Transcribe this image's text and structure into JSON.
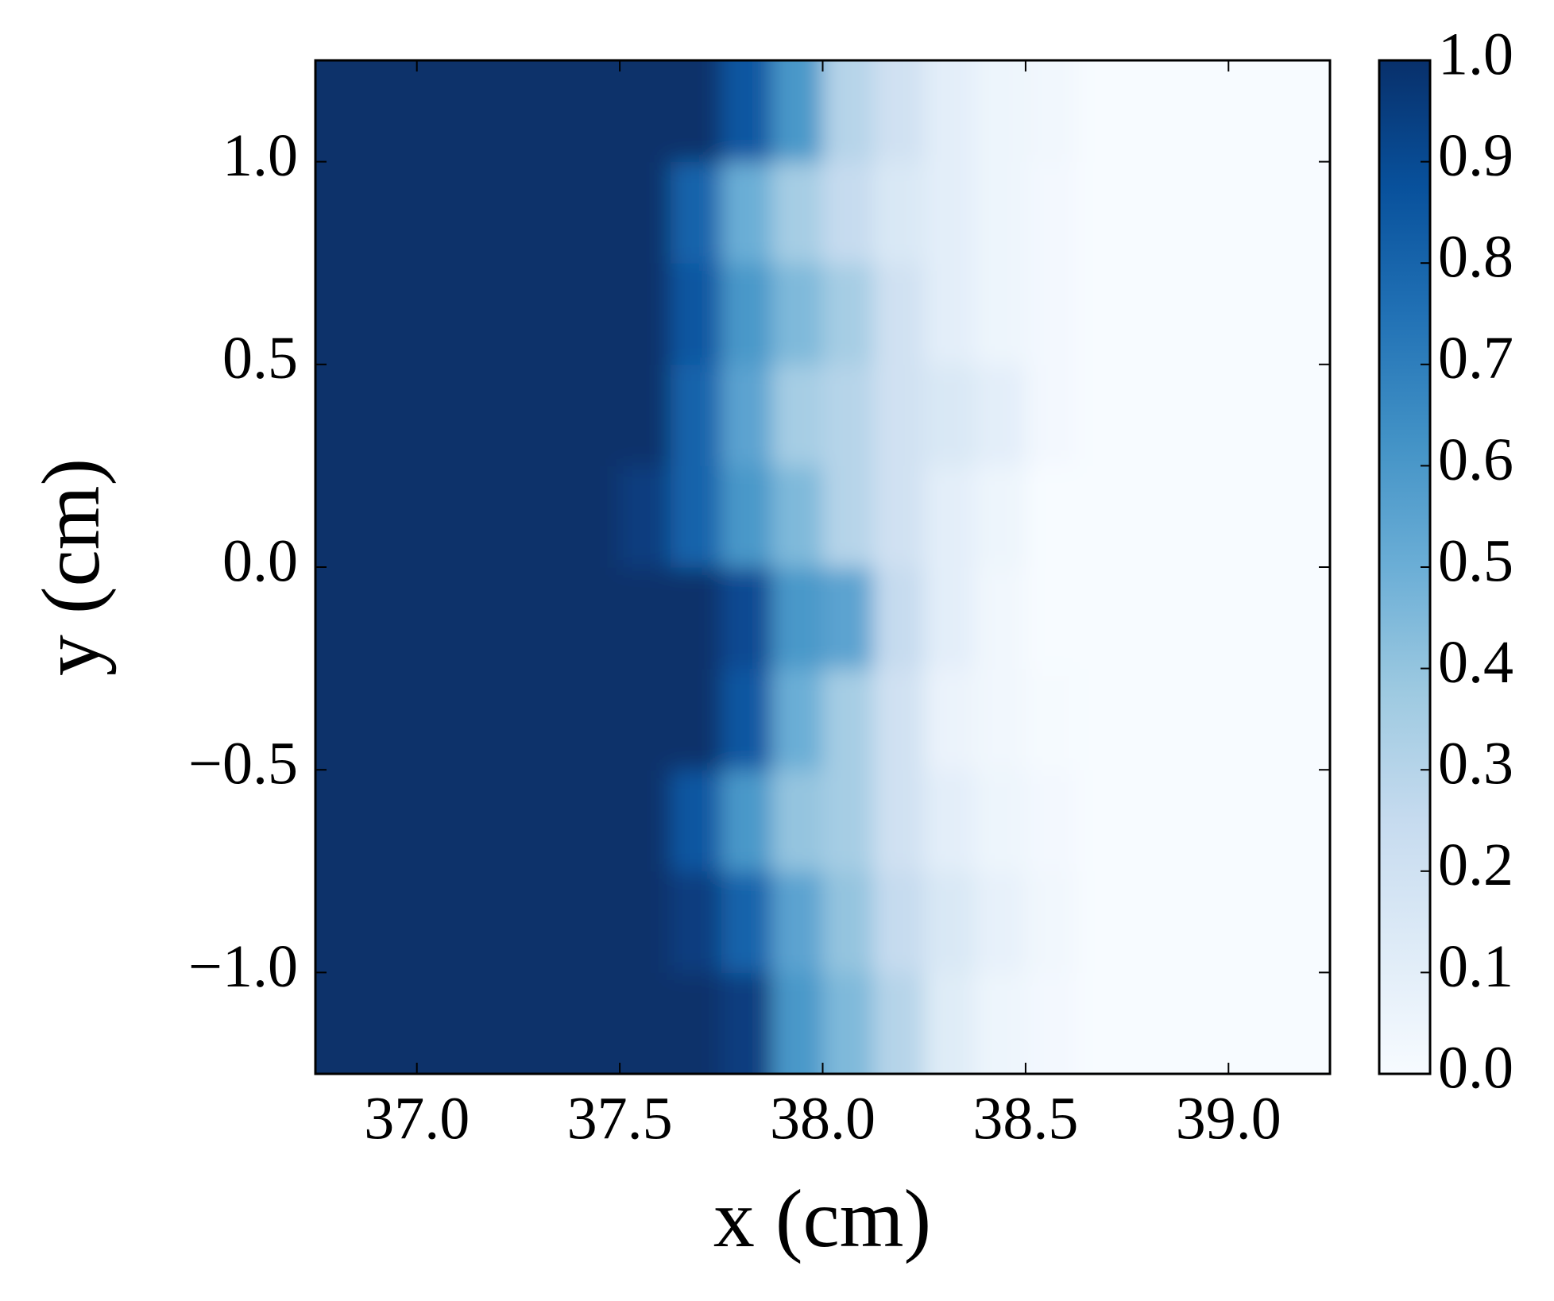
{
  "chart_data": {
    "type": "heatmap",
    "xlabel": "x (cm)",
    "ylabel": "y (cm)",
    "xlim": [
      36.75,
      39.25
    ],
    "ylim": [
      -1.25,
      1.25
    ],
    "xticks": [
      {
        "value": 37,
        "label": "37.0"
      },
      {
        "value": 37.5,
        "label": "37.5"
      },
      {
        "value": 38,
        "label": "38.0"
      },
      {
        "value": 38.5,
        "label": "38.5"
      },
      {
        "value": 39,
        "label": "39.0"
      }
    ],
    "yticks": [
      {
        "value": -1,
        "label": "−1.0"
      },
      {
        "value": -0.5,
        "label": "−0.5"
      },
      {
        "value": 0,
        "label": "0.0"
      },
      {
        "value": 0.5,
        "label": "0.5"
      },
      {
        "value": 1,
        "label": "1.0"
      }
    ],
    "clim": [
      0,
      1
    ],
    "cticks": [
      {
        "value": 0,
        "label": "0.0"
      },
      {
        "value": 0.1,
        "label": "0.1"
      },
      {
        "value": 0.2,
        "label": "0.2"
      },
      {
        "value": 0.3,
        "label": "0.3"
      },
      {
        "value": 0.4,
        "label": "0.4"
      },
      {
        "value": 0.5,
        "label": "0.5"
      },
      {
        "value": 0.6,
        "label": "0.6"
      },
      {
        "value": 0.7,
        "label": "0.7"
      },
      {
        "value": 0.8,
        "label": "0.8"
      },
      {
        "value": 0.9,
        "label": "0.9"
      },
      {
        "value": 1,
        "label": "1.0"
      }
    ],
    "colormap": [
      "#f7fbff",
      "#deebf7",
      "#c6dbef",
      "#9ecae1",
      "#6baed6",
      "#4292c6",
      "#2171b5",
      "#08519c",
      "#08306b"
    ],
    "x": [
      36.8125,
      36.9375,
      37.0625,
      37.1875,
      37.3125,
      37.4375,
      37.5625,
      37.6875,
      37.8125,
      37.9375,
      38.0625,
      38.1875,
      38.3125,
      38.4375,
      38.5625,
      38.6875,
      38.8125,
      38.9375,
      39.0625,
      39.1875
    ],
    "y": [
      -1.125,
      -0.875,
      -0.625,
      -0.375,
      -0.125,
      0.125,
      0.375,
      0.625,
      0.875,
      1.125
    ],
    "z": [
      [
        1,
        1,
        1,
        1,
        1,
        1,
        1,
        1,
        0.95,
        0.6,
        0.45,
        0.3,
        0.12,
        0.05,
        0.02,
        0,
        0,
        0,
        0,
        0
      ],
      [
        1,
        1,
        1,
        1,
        1,
        1,
        1,
        0.95,
        0.8,
        0.55,
        0.4,
        0.25,
        0.15,
        0.08,
        0.03,
        0,
        0,
        0,
        0,
        0
      ],
      [
        1,
        1,
        1,
        1,
        1,
        1,
        1,
        0.85,
        0.6,
        0.4,
        0.35,
        0.2,
        0.1,
        0.05,
        0.02,
        0,
        0,
        0,
        0,
        0
      ],
      [
        1,
        1,
        1,
        1,
        1,
        1,
        1,
        1,
        0.85,
        0.5,
        0.35,
        0.2,
        0.06,
        0.03,
        0.01,
        0,
        0,
        0,
        0,
        0
      ],
      [
        1,
        1,
        1,
        1,
        1,
        1,
        1,
        1,
        0.9,
        0.6,
        0.55,
        0.25,
        0.1,
        0.03,
        0,
        0,
        0,
        0,
        0,
        0
      ],
      [
        1,
        1,
        1,
        1,
        1,
        1,
        0.95,
        0.8,
        0.6,
        0.45,
        0.3,
        0.2,
        0.1,
        0.05,
        0,
        0,
        0,
        0,
        0,
        0
      ],
      [
        1,
        1,
        1,
        1,
        1,
        1,
        1,
        0.8,
        0.55,
        0.35,
        0.3,
        0.2,
        0.15,
        0.1,
        0.02,
        0,
        0,
        0,
        0,
        0
      ],
      [
        1,
        1,
        1,
        1,
        1,
        1,
        1,
        0.85,
        0.6,
        0.45,
        0.35,
        0.2,
        0.1,
        0.05,
        0.02,
        0,
        0,
        0,
        0,
        0
      ],
      [
        1,
        1,
        1,
        1,
        1,
        1,
        1,
        0.8,
        0.5,
        0.35,
        0.25,
        0.15,
        0.1,
        0.05,
        0.02,
        0,
        0,
        0,
        0,
        0
      ],
      [
        1,
        1,
        1,
        1,
        1,
        1,
        1,
        1,
        0.85,
        0.6,
        0.3,
        0.2,
        0.1,
        0.05,
        0.03,
        0,
        0,
        0,
        0,
        0
      ]
    ]
  }
}
